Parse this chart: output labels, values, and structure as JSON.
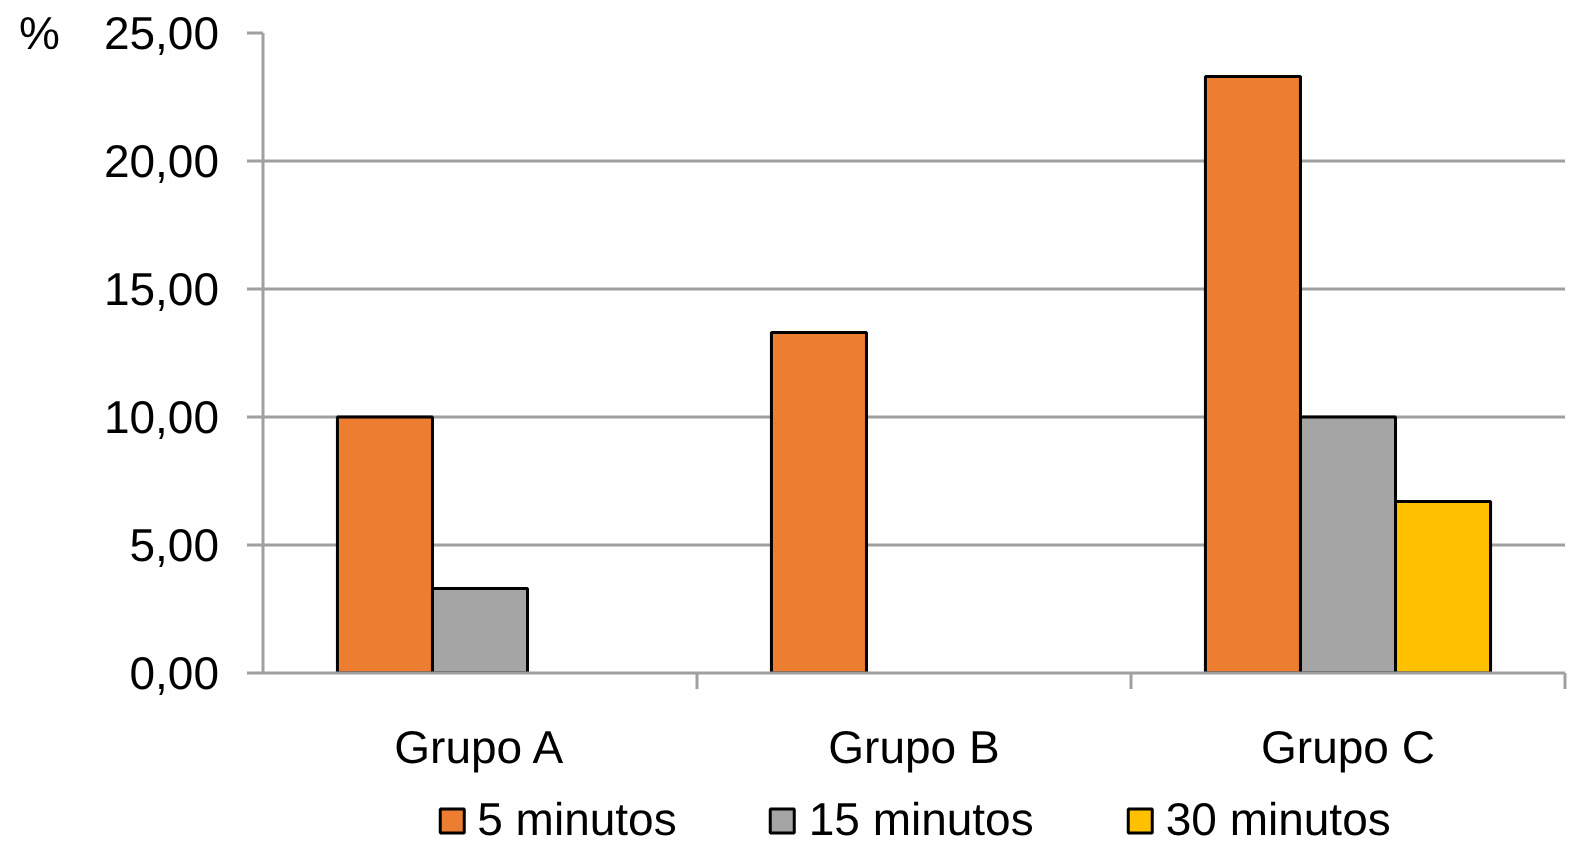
{
  "chart_data": {
    "type": "bar",
    "ylabel": "%",
    "categories": [
      "Grupo A",
      "Grupo B",
      "Grupo C"
    ],
    "series": [
      {
        "name": "5 minutos",
        "color": "#ed7d31",
        "values": [
          10.0,
          13.3,
          23.3
        ]
      },
      {
        "name": "15 minutos",
        "color": "#a5a5a5",
        "values": [
          3.3,
          null,
          10.0
        ]
      },
      {
        "name": "30 minutos",
        "color": "#ffc000",
        "values": [
          null,
          null,
          6.7
        ]
      }
    ],
    "ylim": [
      0,
      25
    ],
    "yticks": [
      {
        "value": 0,
        "label": "0,00"
      },
      {
        "value": 5,
        "label": "5,00"
      },
      {
        "value": 10,
        "label": "10,00"
      },
      {
        "value": 15,
        "label": "15,00"
      },
      {
        "value": 20,
        "label": "20,00"
      },
      {
        "value": 25,
        "label": "25,00"
      }
    ],
    "grid": "y",
    "legend": "bottom"
  }
}
